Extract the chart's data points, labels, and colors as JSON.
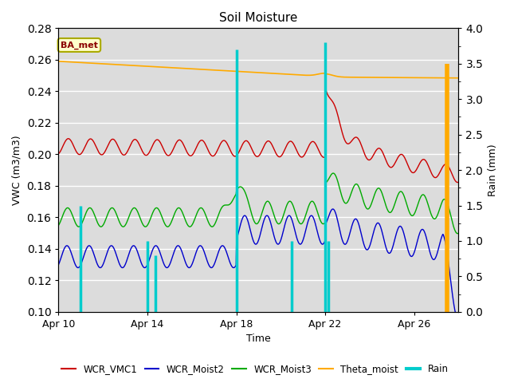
{
  "title": "Soil Moisture",
  "xlabel": "Time",
  "ylabel_left": "VWC (m3/m3)",
  "ylabel_right": "Rain (mm)",
  "ylim_left": [
    0.1,
    0.28
  ],
  "ylim_right": [
    0.0,
    4.0
  ],
  "yticks_left": [
    0.1,
    0.12,
    0.14,
    0.16,
    0.18,
    0.2,
    0.22,
    0.24,
    0.26,
    0.28
  ],
  "yticks_right": [
    0.0,
    0.5,
    1.0,
    1.5,
    2.0,
    2.5,
    3.0,
    3.5,
    4.0
  ],
  "xlim": [
    0,
    18
  ],
  "xtick_labels": [
    "Apr 10",
    "Apr 14",
    "Apr 18",
    "Apr 22",
    "Apr 26"
  ],
  "xtick_positions": [
    0,
    4,
    8,
    12,
    16
  ],
  "annotation_label": "BA_met",
  "bg_color": "#dcdcdc",
  "fig_color": "#ffffff",
  "colors": {
    "WCR_VMC1": "#cc0000",
    "WCR_Moist2": "#0000cc",
    "WCR_Moist3": "#00aa00",
    "Theta_moist": "#ffaa00",
    "Rain": "#00cccc"
  },
  "grid_color": "#ffffff",
  "annotation_bg": "#ffffcc",
  "annotation_edge": "#aaaa00",
  "figsize": [
    6.4,
    4.8
  ],
  "dpi": 100
}
